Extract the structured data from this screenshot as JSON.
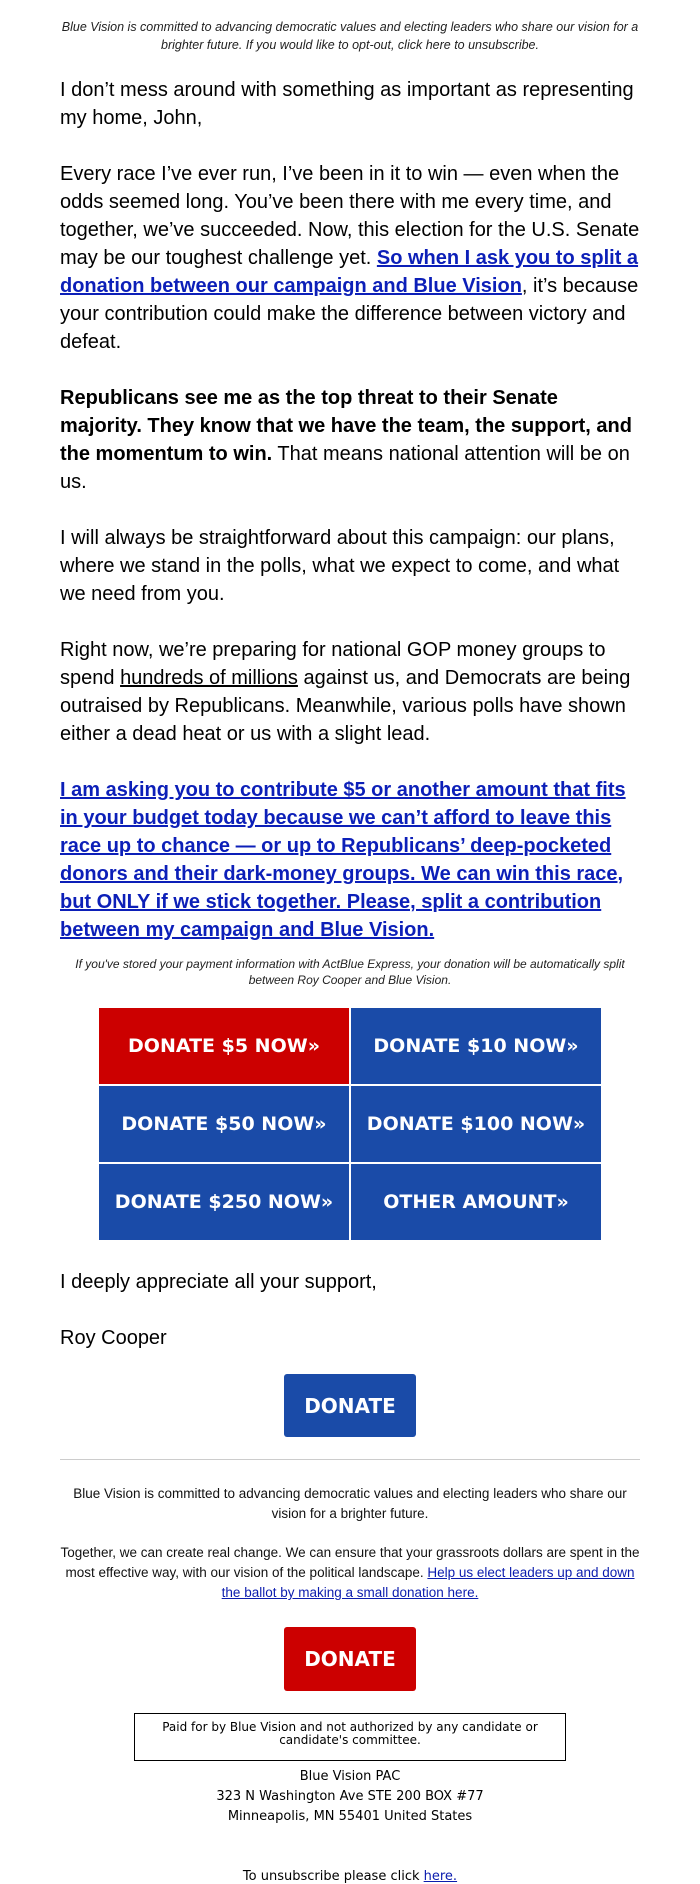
{
  "preheader": "Blue Vision is committed to advancing democratic values and electing leaders who share our vision for a brighter future. If you would like to opt-out, click here to unsubscribe.",
  "body": {
    "p1": "I don’t mess around with something as important as representing my home, John,",
    "p2_text": "Every race I’ve ever run, I’ve been in it to win — even when the odds seemed long. You’ve been there with me every time, and together, we’ve succeeded. Now, this election for the U.S. Senate may be our toughest challenge yet. ",
    "p2_link": "So when I ask you to split a donation between our campaign and Blue Vision",
    "p2_end": ", it’s because your contribution could make the difference between victory and defeat.",
    "p3_bold": "Republicans see me as the top threat to their Senate majority. They know that we have the team, the support, and the momentum to win.",
    "p3_end": " That means national attention will be on us.",
    "p4": "I will always be straightforward about this campaign: our plans, where we stand in the polls, what we expect to come, and what we need from you.",
    "p5_a": "Right now, we’re preparing for national GOP money groups to spend ",
    "p5_u": "hundreds of millions",
    "p5_b": " against us, and Democrats are being outraised by Republicans. Meanwhile, various polls have shown either a dead heat or us with a slight lead.",
    "p6_link": "I am asking you to contribute $5 or another amount that fits in your budget today because we can’t afford to leave this race up to chance — or up to Republicans’ deep-pocketed donors and their dark-money groups. We can win this race, but ONLY if we stick together. Please, split a contribution between my campaign and Blue Vision."
  },
  "express_note": "If you've stored your payment information with ActBlue Express, your donation will be automatically split between Roy Cooper and Blue Vision.",
  "donate_grid": [
    {
      "label": "DONATE $5 NOW»",
      "color": "#cc0000"
    },
    {
      "label": "DONATE $10 NOW»",
      "color": "#1a4ba8"
    },
    {
      "label": "DONATE $50 NOW»",
      "color": "#1a4ba8"
    },
    {
      "label": "DONATE $100 NOW»",
      "color": "#1a4ba8"
    },
    {
      "label": "DONATE $250 NOW»",
      "color": "#1a4ba8"
    },
    {
      "label": "OTHER AMOUNT»",
      "color": "#1a4ba8"
    }
  ],
  "closing": "I deeply appreciate all your support,",
  "signature": "Roy Cooper",
  "donate_button_blue": "DONATE",
  "footer": {
    "p1": "Blue Vision is committed to advancing democratic values and electing leaders who share our vision for a brighter future.",
    "p2_text": "Together, we can create real change. We can ensure that your grassroots dollars are spent in the most effective way, with our vision of the political landscape. ",
    "p2_link": "Help us elect leaders up and down the ballot by making a small donation here.",
    "donate_button_red": "DONATE",
    "paid_for": "Paid for by Blue Vision and not authorized by any candidate or candidate's committee.",
    "address": [
      "Blue Vision PAC",
      "323 N Washington Ave STE 200 BOX #77",
      "Minneapolis, MN 55401 United States"
    ],
    "unsub_text": "To unsubscribe please click ",
    "unsub_link": "here."
  }
}
